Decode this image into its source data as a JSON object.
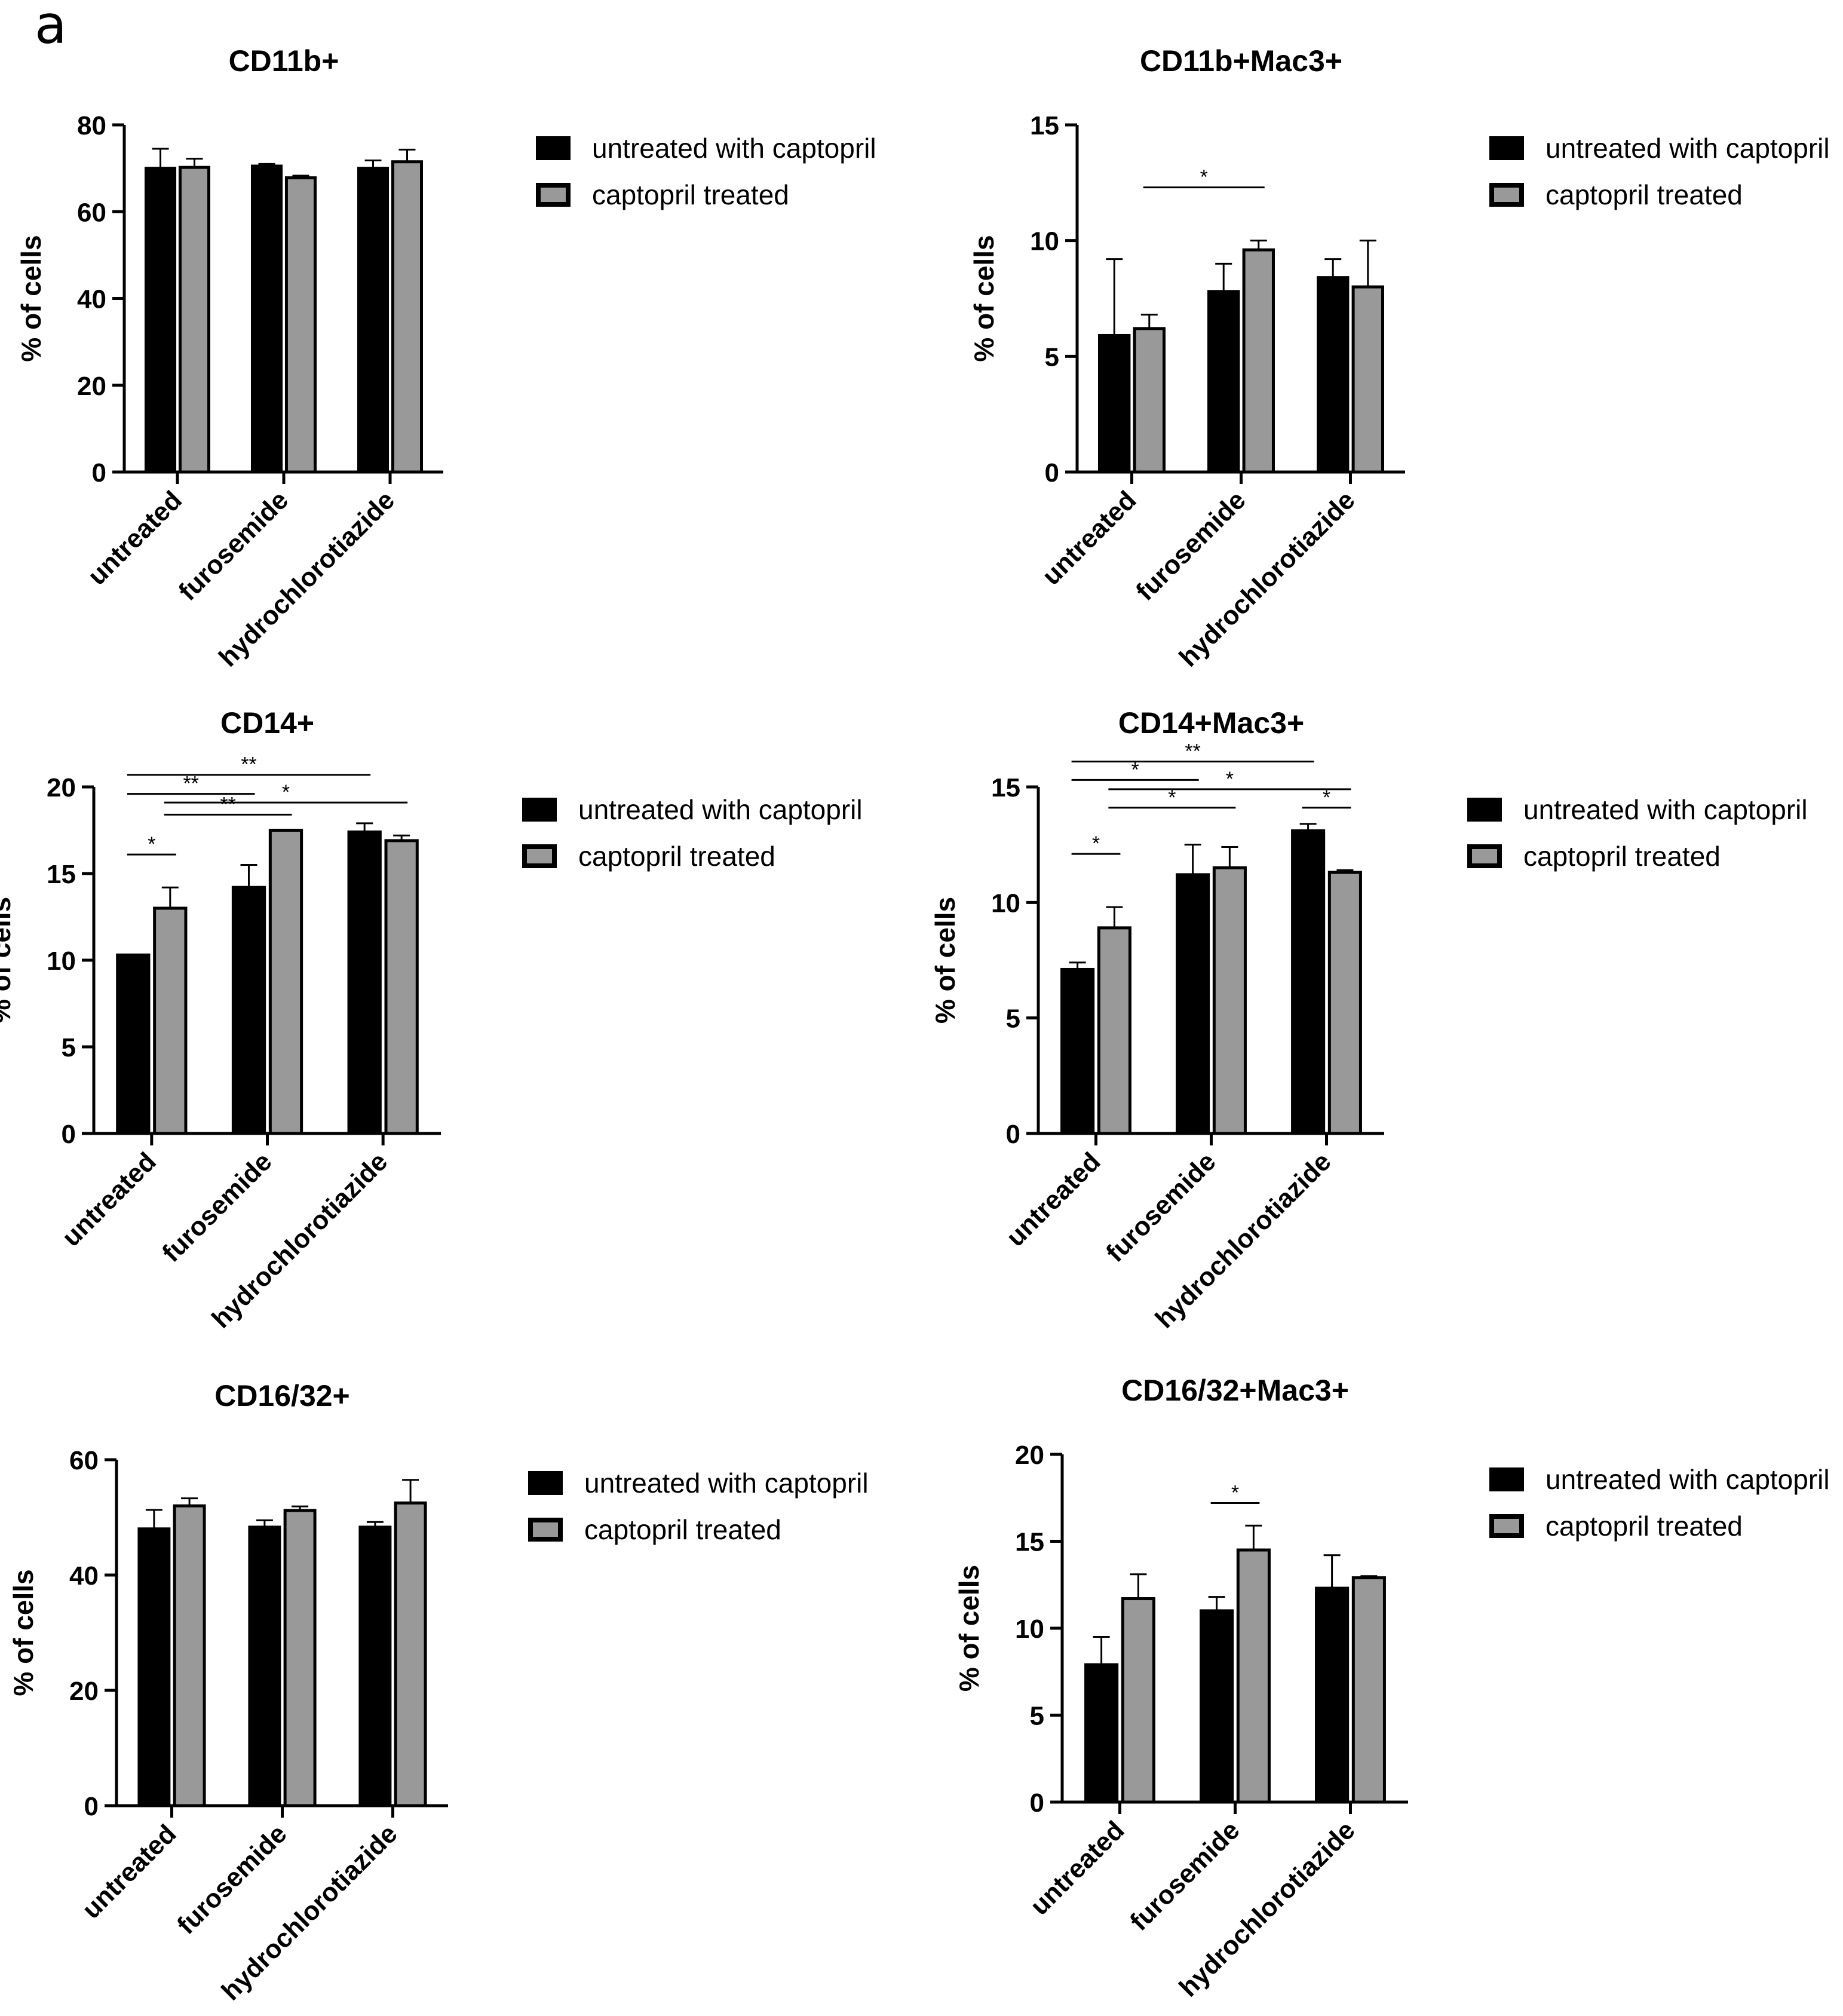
{
  "panel_label": "a",
  "colors": {
    "series1": "#000000",
    "series2": "#999999",
    "axis": "#000000"
  },
  "chart_data": [
    {
      "type": "bar",
      "title": "CD11b+",
      "ylabel": "% of cells",
      "xlabel": "",
      "categories": [
        "untreated",
        "furosemide",
        "hydrochlorotiazide"
      ],
      "ylim": [
        0,
        80
      ],
      "yticks": [
        "0",
        "20",
        "40",
        "60",
        "80"
      ],
      "legend": [
        "untreated with captopril",
        "captopril treated"
      ],
      "series": [
        {
          "name": "untreated with captopril",
          "values": [
            70,
            70.5,
            70
          ],
          "errors": [
            4.5,
            0.5,
            1.8
          ]
        },
        {
          "name": "captopril treated",
          "values": [
            70.2,
            67.8,
            71.5
          ],
          "errors": [
            2,
            0.5,
            2.8
          ]
        }
      ],
      "annotations": []
    },
    {
      "type": "bar",
      "title": "CD11b+Mac3+",
      "ylabel": "% of cells",
      "xlabel": "",
      "categories": [
        "untreated",
        "furosemide",
        "hydrochlorotiazide"
      ],
      "ylim": [
        0,
        15
      ],
      "yticks": [
        "0",
        "5",
        "10",
        "15"
      ],
      "legend": [
        "untreated with captopril",
        "captopril treated"
      ],
      "series": [
        {
          "name": "untreated with captopril",
          "values": [
            5.9,
            7.8,
            8.4
          ],
          "errors": [
            3.3,
            1.2,
            0.8
          ]
        },
        {
          "name": "captopril treated",
          "values": [
            6.2,
            9.6,
            8.0
          ],
          "errors": [
            0.6,
            0.4,
            2.0
          ]
        }
      ],
      "annotations": [
        {
          "text": "*",
          "from": [
            0,
            1
          ],
          "to": [
            1,
            1
          ],
          "y": 12.3
        }
      ]
    },
    {
      "type": "bar",
      "title": "CD14+",
      "ylabel": "% of cells",
      "xlabel": "",
      "categories": [
        "untreated",
        "furosemide",
        "hydrochlorotiazide"
      ],
      "ylim": [
        0,
        20
      ],
      "yticks": [
        "0",
        "5",
        "10",
        "15",
        "20"
      ],
      "legend": [
        "untreated with captopril",
        "captopril treated"
      ],
      "series": [
        {
          "name": "untreated with captopril",
          "values": [
            10.3,
            14.2,
            17.4
          ],
          "errors": [
            0,
            1.3,
            0.5
          ]
        },
        {
          "name": "captopril treated",
          "values": [
            13.0,
            17.5,
            16.9
          ],
          "errors": [
            1.2,
            0,
            0.3
          ]
        }
      ],
      "annotations": [
        {
          "text": "*",
          "from": [
            0,
            0
          ],
          "to": [
            0,
            1
          ],
          "y": 16.1
        },
        {
          "text": "**",
          "from": [
            0,
            1
          ],
          "to": [
            1,
            1
          ],
          "y": 18.4
        },
        {
          "text": "*",
          "from": [
            0,
            1
          ],
          "to": [
            2,
            1
          ],
          "y": 19.1
        },
        {
          "text": "**",
          "from": [
            0,
            0
          ],
          "to": [
            1,
            0
          ],
          "y": 19.6
        },
        {
          "text": "**",
          "from": [
            0,
            0
          ],
          "to": [
            2,
            0
          ],
          "y": 20.7
        }
      ]
    },
    {
      "type": "bar",
      "title": "CD14+Mac3+",
      "ylabel": "% of cells",
      "xlabel": "",
      "categories": [
        "untreated",
        "furosemide",
        "hydrochlorotiazide"
      ],
      "ylim": [
        0,
        15
      ],
      "yticks": [
        "0",
        "5",
        "10",
        "15"
      ],
      "legend": [
        "untreated with captopril",
        "captopril treated"
      ],
      "series": [
        {
          "name": "untreated with captopril",
          "values": [
            7.1,
            11.2,
            13.1
          ],
          "errors": [
            0.3,
            1.3,
            0.3
          ]
        },
        {
          "name": "captopril treated",
          "values": [
            8.9,
            11.5,
            11.3
          ],
          "errors": [
            0.9,
            0.9,
            0.1
          ]
        }
      ],
      "annotations": [
        {
          "text": "*",
          "from": [
            0,
            0
          ],
          "to": [
            0,
            1
          ],
          "y": 12.1
        },
        {
          "text": "*",
          "from": [
            0,
            1
          ],
          "to": [
            1,
            1
          ],
          "y": 14.1
        },
        {
          "text": "*",
          "from": [
            2,
            0
          ],
          "to": [
            2,
            1
          ],
          "y": 14.1
        },
        {
          "text": "*",
          "from": [
            0,
            1
          ],
          "to": [
            2,
            1
          ],
          "y": 14.9
        },
        {
          "text": "*",
          "from": [
            0,
            0
          ],
          "to": [
            1,
            0
          ],
          "y": 15.3
        },
        {
          "text": "**",
          "from": [
            0,
            0
          ],
          "to": [
            2,
            0
          ],
          "y": 16.1
        }
      ]
    },
    {
      "type": "bar",
      "title": "CD16/32+",
      "ylabel": "% of cells",
      "xlabel": "",
      "categories": [
        "untreated",
        "furosemide",
        "hydrochlorotiazide"
      ],
      "ylim": [
        0,
        60
      ],
      "yticks": [
        "0",
        "20",
        "40",
        "60"
      ],
      "legend": [
        "untreated with captopril",
        "captopril treated"
      ],
      "series": [
        {
          "name": "untreated with captopril",
          "values": [
            48,
            48.3,
            48.3
          ],
          "errors": [
            3.3,
            1.2,
            0.9
          ]
        },
        {
          "name": "captopril treated",
          "values": [
            52,
            51.2,
            52.5
          ],
          "errors": [
            1.3,
            0.7,
            4.0
          ]
        }
      ],
      "annotations": []
    },
    {
      "type": "bar",
      "title": "CD16/32+Mac3+",
      "ylabel": "% of cells",
      "xlabel": "",
      "categories": [
        "untreated",
        "furosemide",
        "hydrochlorotiazide"
      ],
      "ylim": [
        0,
        20
      ],
      "yticks": [
        "0",
        "5",
        "10",
        "15",
        "20"
      ],
      "legend": [
        "untreated with captopril",
        "captopril treated"
      ],
      "series": [
        {
          "name": "untreated with captopril",
          "values": [
            7.9,
            11.0,
            12.3
          ],
          "errors": [
            1.6,
            0.8,
            1.9
          ]
        },
        {
          "name": "captopril treated",
          "values": [
            11.7,
            14.5,
            12.9
          ],
          "errors": [
            1.4,
            1.4,
            0.1
          ]
        }
      ],
      "annotations": [
        {
          "text": "*",
          "from": [
            1,
            0
          ],
          "to": [
            1,
            1
          ],
          "y": 17.2
        }
      ]
    }
  ]
}
